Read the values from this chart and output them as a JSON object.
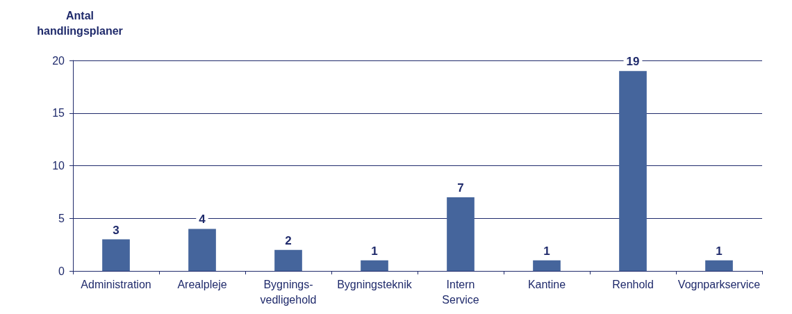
{
  "chart_data": {
    "type": "bar",
    "ylabel": "Antal\nhandlingsplaner",
    "categories": [
      "Administration",
      "Arealpleje",
      "Bygnings-\nvedligehold",
      "Bygningsteknik",
      "Intern\nService",
      "Kantine",
      "Renhold",
      "Vognparkservice"
    ],
    "values": [
      3,
      4,
      2,
      1,
      7,
      1,
      19,
      1
    ],
    "color": "#45659c",
    "ylim": [
      0,
      20
    ],
    "yticks": [
      0,
      5,
      10,
      15,
      20
    ],
    "grid": "y",
    "data_labels": true
  }
}
